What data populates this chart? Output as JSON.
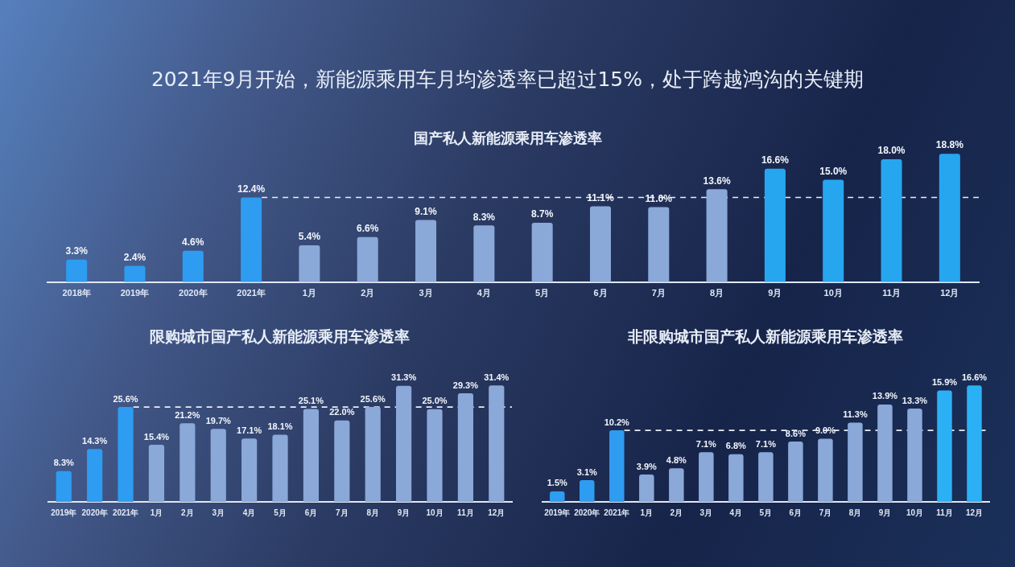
{
  "chart_data": [
    {
      "type": "bar",
      "title": "2021年9月开始，新能源乘用车月均渗透率已超过15%，处于跨越鸿沟的关键期",
      "subtitle": "国产私人新能源乘用车渗透率",
      "categories": [
        "2018年",
        "2019年",
        "2020年",
        "2021年",
        "1月",
        "2月",
        "3月",
        "4月",
        "5月",
        "6月",
        "7月",
        "8月",
        "9月",
        "10月",
        "11月",
        "12月"
      ],
      "values": [
        3.3,
        2.4,
        4.6,
        12.4,
        5.4,
        6.6,
        9.1,
        8.3,
        8.7,
        11.1,
        11.0,
        13.6,
        16.6,
        15.0,
        18.0,
        18.8
      ],
      "value_labels": [
        "3.3%",
        "2.4%",
        "4.6%",
        "12.4%",
        "5.4%",
        "6.6%",
        "9.1%",
        "8.3%",
        "8.7%",
        "11.1%",
        "11.0%",
        "13.6%",
        "16.6%",
        "15.0%",
        "18.0%",
        "18.8%"
      ],
      "colors": [
        "#2e9cf0",
        "#2e9cf0",
        "#2e9cf0",
        "#2e9cf0",
        "#8aa8d8",
        "#8aa8d8",
        "#8aa8d8",
        "#8aa8d8",
        "#8aa8d8",
        "#8aa8d8",
        "#8aa8d8",
        "#8aa8d8",
        "#27a6f0",
        "#27a6f0",
        "#27a6f0",
        "#27a6f0"
      ],
      "ref_lines": [
        {
          "axis": "y",
          "value": 12.4,
          "line_style": "dashed",
          "color": "#e8eef8"
        }
      ]
    },
    {
      "type": "bar",
      "title": "限购城市国产私人新能源乘用车渗透率",
      "categories": [
        "2019年",
        "2020年",
        "2021年",
        "1月",
        "2月",
        "3月",
        "4月",
        "5月",
        "6月",
        "7月",
        "8月",
        "9月",
        "10月",
        "11月",
        "12月"
      ],
      "values": [
        8.3,
        14.3,
        25.6,
        15.4,
        21.2,
        19.7,
        17.1,
        18.1,
        25.1,
        22.0,
        25.6,
        31.3,
        25.0,
        29.3,
        31.4
      ],
      "value_labels": [
        "8.3%",
        "14.3%",
        "25.6%",
        "15.4%",
        "21.2%",
        "19.7%",
        "17.1%",
        "18.1%",
        "25.1%",
        "22.0%",
        "25.6%",
        "31.3%",
        "25.0%",
        "29.3%",
        "31.4%"
      ],
      "colors": [
        "#2e9cf0",
        "#2e9cf0",
        "#2e9cf0",
        "#8aa8d8",
        "#8aa8d8",
        "#8aa8d8",
        "#8aa8d8",
        "#8aa8d8",
        "#8aa8d8",
        "#8aa8d8",
        "#8aa8d8",
        "#8aa8d8",
        "#8aa8d8",
        "#8aa8d8",
        "#8aa8d8"
      ],
      "ref_lines": [
        {
          "axis": "y",
          "value": 25.6,
          "line_style": "dashed",
          "color": "#e8eef8"
        }
      ]
    },
    {
      "type": "bar",
      "title": "非限购城市国产私人新能源乘用车渗透率",
      "categories": [
        "2019年",
        "2020年",
        "2021年",
        "1月",
        "2月",
        "3月",
        "4月",
        "5月",
        "6月",
        "7月",
        "8月",
        "9月",
        "10月",
        "11月",
        "12月"
      ],
      "values": [
        1.5,
        3.1,
        10.2,
        3.9,
        4.8,
        7.1,
        6.8,
        7.1,
        8.6,
        9.0,
        11.3,
        13.9,
        13.3,
        15.9,
        16.6
      ],
      "value_labels": [
        "1.5%",
        "3.1%",
        "10.2%",
        "3.9%",
        "4.8%",
        "7.1%",
        "6.8%",
        "7.1%",
        "8.6%",
        "9.0%",
        "11.3%",
        "13.9%",
        "13.3%",
        "15.9%",
        "16.6%"
      ],
      "colors": [
        "#2e9cf0",
        "#2e9cf0",
        "#2e9cf0",
        "#8aa8d8",
        "#8aa8d8",
        "#8aa8d8",
        "#8aa8d8",
        "#8aa8d8",
        "#8aa8d8",
        "#8aa8d8",
        "#8aa8d8",
        "#8aa8d8",
        "#8aa8d8",
        "#2bb0f5",
        "#2bb0f5"
      ],
      "ref_lines": [
        {
          "axis": "y",
          "value": 10.2,
          "line_style": "dashed",
          "color": "#e8eef8"
        }
      ]
    }
  ]
}
